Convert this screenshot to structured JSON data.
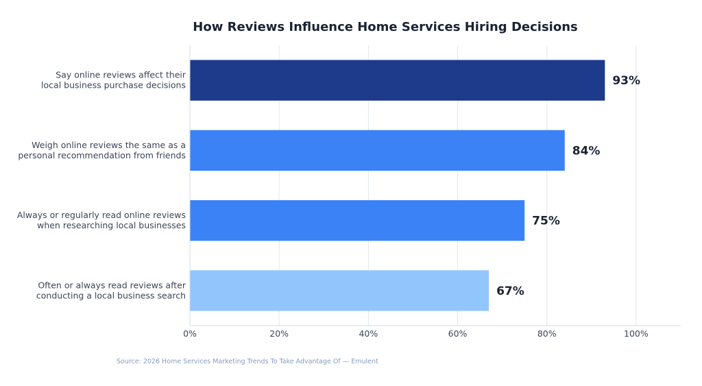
{
  "chart_data": {
    "type": "bar",
    "orientation": "horizontal",
    "title": "How Reviews Influence Home Services Hiring Decisions",
    "categories": [
      [
        "Say online reviews affect their",
        "local business purchase decisions"
      ],
      [
        "Weigh online reviews the same as a",
        "personal recommendation from friends"
      ],
      [
        "Always or regularly read online reviews",
        "when researching local businesses"
      ],
      [
        "Often or always read reviews after",
        "conducting a local business search"
      ]
    ],
    "values": [
      93,
      84,
      75,
      67
    ],
    "value_labels": [
      "93%",
      "84%",
      "75%",
      "67%"
    ],
    "bar_colors": [
      "#1e3a8a",
      "#3b82f6",
      "#3b82f6",
      "#93c5fd"
    ],
    "xlim": [
      0,
      110
    ],
    "x_ticks": [
      0,
      20,
      40,
      60,
      80,
      100
    ],
    "x_tick_labels": [
      "0%",
      "20%",
      "40%",
      "60%",
      "80%",
      "100%"
    ],
    "grid": "vertical",
    "source": "Source: 2026 Home Services Marketing Trends To Take Advantage Of — Emulent"
  }
}
